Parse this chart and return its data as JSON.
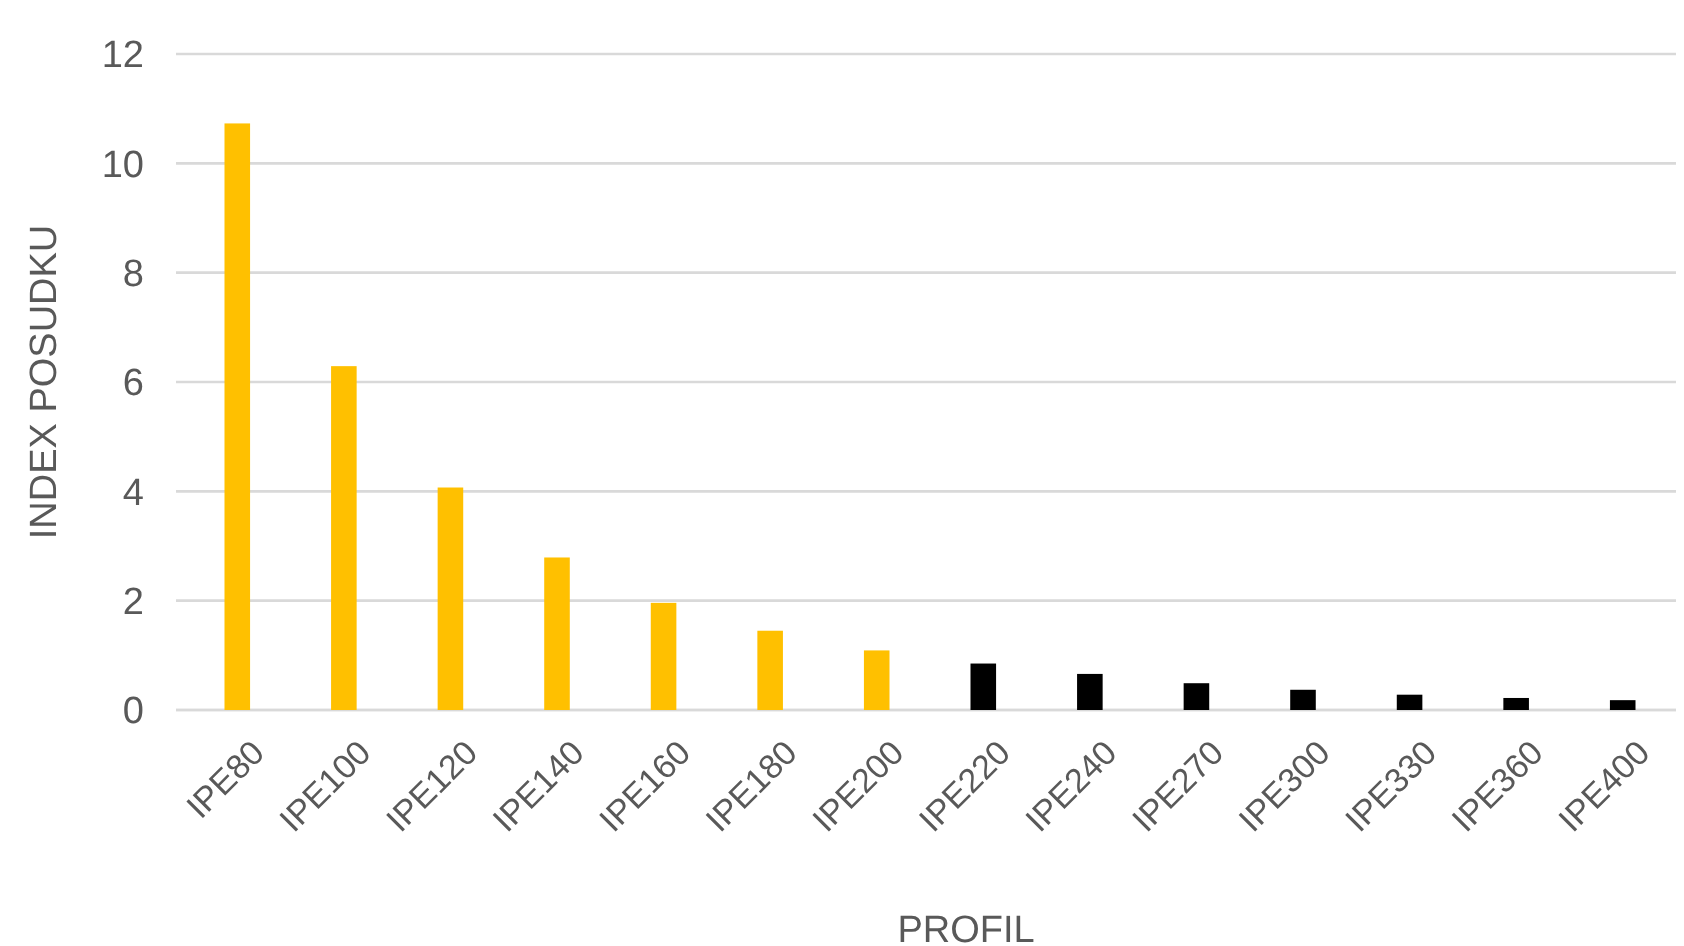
{
  "chart_data": {
    "type": "bar",
    "xlabel": "PROFIL",
    "ylabel": "INDEX POSUDKU",
    "categories": [
      "IPE80",
      "IPE100",
      "IPE120",
      "IPE140",
      "IPE160",
      "IPE180",
      "IPE200",
      "IPE220",
      "IPE240",
      "IPE270",
      "IPE300",
      "IPE330",
      "IPE360",
      "IPE400"
    ],
    "values": [
      10.73,
      6.29,
      4.07,
      2.79,
      1.96,
      1.45,
      1.09,
      0.85,
      0.66,
      0.49,
      0.37,
      0.28,
      0.22,
      0.18
    ],
    "colors": [
      "#ffc000",
      "#ffc000",
      "#ffc000",
      "#ffc000",
      "#ffc000",
      "#ffc000",
      "#ffc000",
      "#000000",
      "#000000",
      "#000000",
      "#000000",
      "#000000",
      "#000000",
      "#000000"
    ],
    "ylim": [
      0,
      12
    ],
    "yticks": [
      0,
      2,
      4,
      6,
      8,
      10,
      12
    ],
    "grid": "y"
  }
}
